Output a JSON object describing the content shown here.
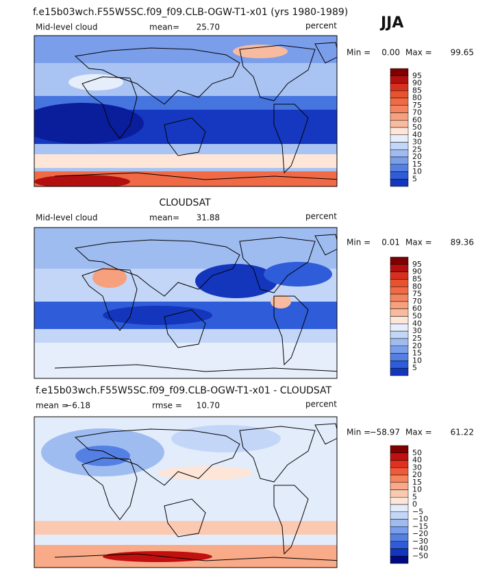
{
  "season": "JJA",
  "panels": [
    {
      "title": "f.e15b03wch.F55W5SC.f09_f09.CLB-OGW-T1-x01 (yrs 1980-1989)",
      "variable": "Mid-level cloud",
      "mean_label": "mean=",
      "mean": "25.70",
      "units": "percent",
      "min_label": "Min =",
      "min": "0.00",
      "max_label": "Max =",
      "max": "99.65",
      "colorbar": {
        "labels": [
          "95",
          "90",
          "85",
          "80",
          "75",
          "70",
          "60",
          "50",
          "40",
          "30",
          "25",
          "20",
          "15",
          "10",
          "5"
        ],
        "colors": [
          "#7f0000",
          "#b40f0f",
          "#d7301f",
          "#e8532e",
          "#f06a46",
          "#f4845f",
          "#f7a07e",
          "#f9bba0",
          "#fde6d8",
          "#e6eefb",
          "#c4d6f7",
          "#9fbcf1",
          "#7a9eea",
          "#5580e3",
          "#2f5cd8",
          "#1436bd"
        ]
      }
    },
    {
      "title": "CLOUDSAT",
      "variable": "Mid-level cloud",
      "mean_label": "mean=",
      "mean": "31.88",
      "units": "percent",
      "min_label": "Min =",
      "min": "0.01",
      "max_label": "Max =",
      "max": "89.36",
      "colorbar": {
        "labels": [
          "95",
          "90",
          "85",
          "80",
          "75",
          "70",
          "60",
          "50",
          "40",
          "30",
          "25",
          "20",
          "15",
          "10",
          "5"
        ],
        "colors": [
          "#7f0000",
          "#b40f0f",
          "#d7301f",
          "#e8532e",
          "#f06a46",
          "#f4845f",
          "#f7a07e",
          "#f9bba0",
          "#fde6d8",
          "#e6eefb",
          "#c4d6f7",
          "#9fbcf1",
          "#7a9eea",
          "#5580e3",
          "#2f5cd8",
          "#1436bd"
        ]
      }
    },
    {
      "title": "f.e15b03wch.F55W5SC.f09_f09.CLB-OGW-T1-x01 - CLOUDSAT",
      "mean_label": "mean =",
      "mean": "−6.18",
      "rmse_label": "rmse =",
      "rmse": "10.70",
      "units": "percent",
      "min_label": "Min =",
      "min": "−58.97",
      "max_label": "Max =",
      "max": "61.22",
      "colorbar": {
        "labels": [
          "50",
          "40",
          "30",
          "20",
          "15",
          "10",
          "5",
          "0",
          "−5",
          "−10",
          "−15",
          "−20",
          "−30",
          "−40",
          "−50"
        ],
        "colors": [
          "#7f0000",
          "#c01010",
          "#e03020",
          "#f05a38",
          "#f6845f",
          "#f9aa88",
          "#fbc9b0",
          "#fde6d8",
          "#e3ecfb",
          "#c4d6f7",
          "#9fbcf1",
          "#7a9eea",
          "#5580e3",
          "#2f5cd8",
          "#1436bd",
          "#000a80"
        ]
      }
    }
  ]
}
